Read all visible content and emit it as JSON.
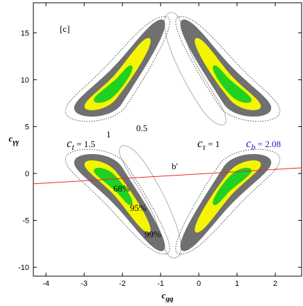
{
  "chart_data": {
    "type": "contour",
    "x_label": {
      "symbol": "c",
      "subscript": "gg"
    },
    "y_label": {
      "symbol": "c",
      "subscript": "γγ"
    },
    "xlim": [
      -4.33,
      2.69
    ],
    "ylim": [
      -10.95,
      18.2
    ],
    "xticks": [
      -4,
      -3,
      -2,
      -1,
      0,
      1,
      2
    ],
    "yticks": [
      -10,
      -5,
      0,
      5,
      10,
      15
    ],
    "lines": [
      {
        "name": "b'",
        "color": "#e8282a",
        "x": [
          -4.33,
          2.69
        ],
        "y": [
          -1.1,
          0.6
        ]
      }
    ],
    "annotations": [
      {
        "text": "[c]"
      },
      {
        "symbol": "c",
        "subscript": "t",
        "text": " = 1.5"
      },
      {
        "text": "1"
      },
      {
        "text": "0.5"
      },
      {
        "symbol": "c",
        "subscript": "τ",
        "text": " = 1"
      },
      {
        "symbol": "c",
        "subscript": "b",
        "text": " = 2.08",
        "color": "#1a1ad0"
      },
      {
        "text": "68%"
      },
      {
        "text": "95%"
      },
      {
        "text": "99%"
      }
    ]
  }
}
